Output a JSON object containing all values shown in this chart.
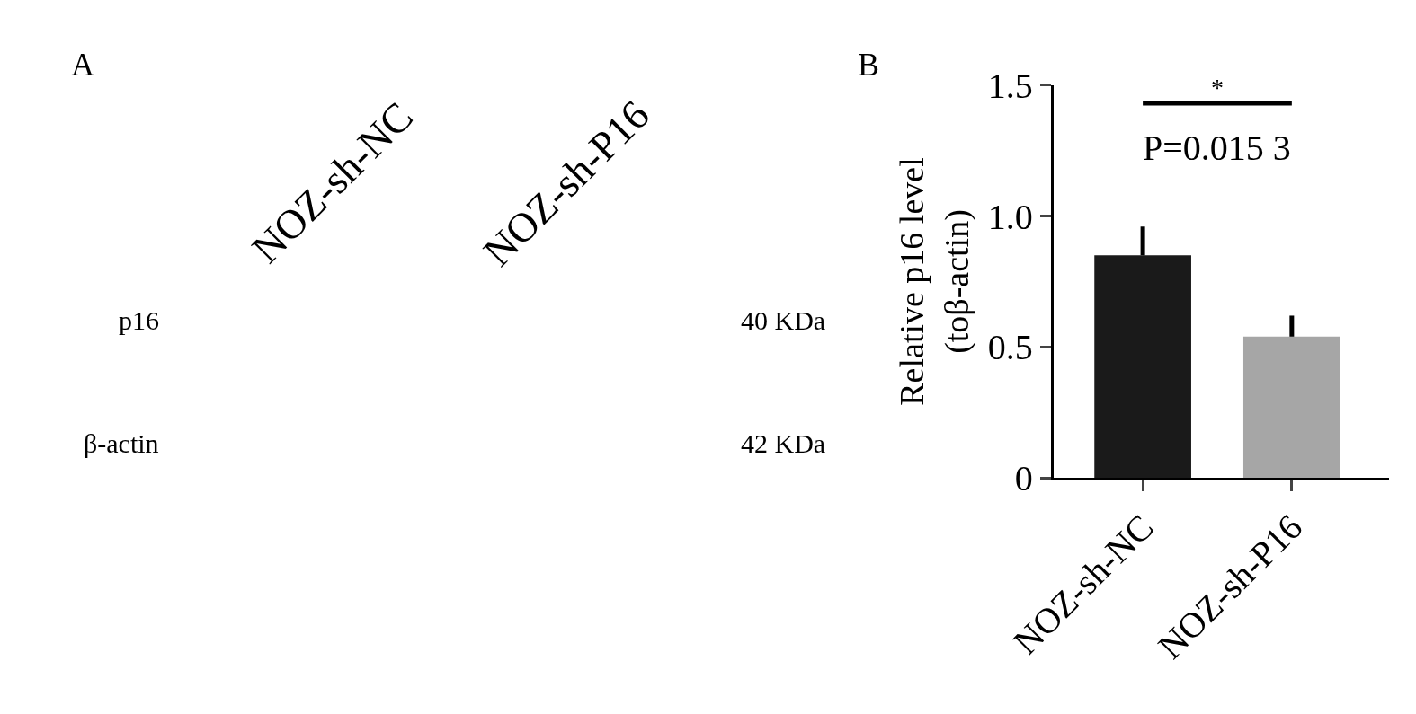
{
  "chart_data": [
    {
      "type": "other",
      "title": "A",
      "annotations": [
        "NOZ-sh-NC",
        "NOZ-sh-P16",
        "p16",
        "β-actin",
        "40 KDa",
        "42 KDa"
      ]
    },
    {
      "type": "bar",
      "title": "B",
      "categories": [
        "NOZ-sh-NC",
        "NOZ-sh-P16"
      ],
      "values": [
        0.85,
        0.54
      ],
      "colors": [
        "#1a1a1a",
        "#a6a6a6"
      ],
      "errors": [
        [
          0.85,
          0.96
        ],
        [
          0.54,
          0.62
        ]
      ],
      "ylabel": "Relative p16 level\n(toβ-actin)",
      "ylim": [
        0,
        1.5
      ],
      "yticks": [
        0,
        {
          "value": 0.5,
          "label": "0.5"
        },
        {
          "value": 1,
          "label": "1.0"
        },
        1.5
      ],
      "annotations": [
        "*",
        "P=0.015 3"
      ]
    }
  ]
}
